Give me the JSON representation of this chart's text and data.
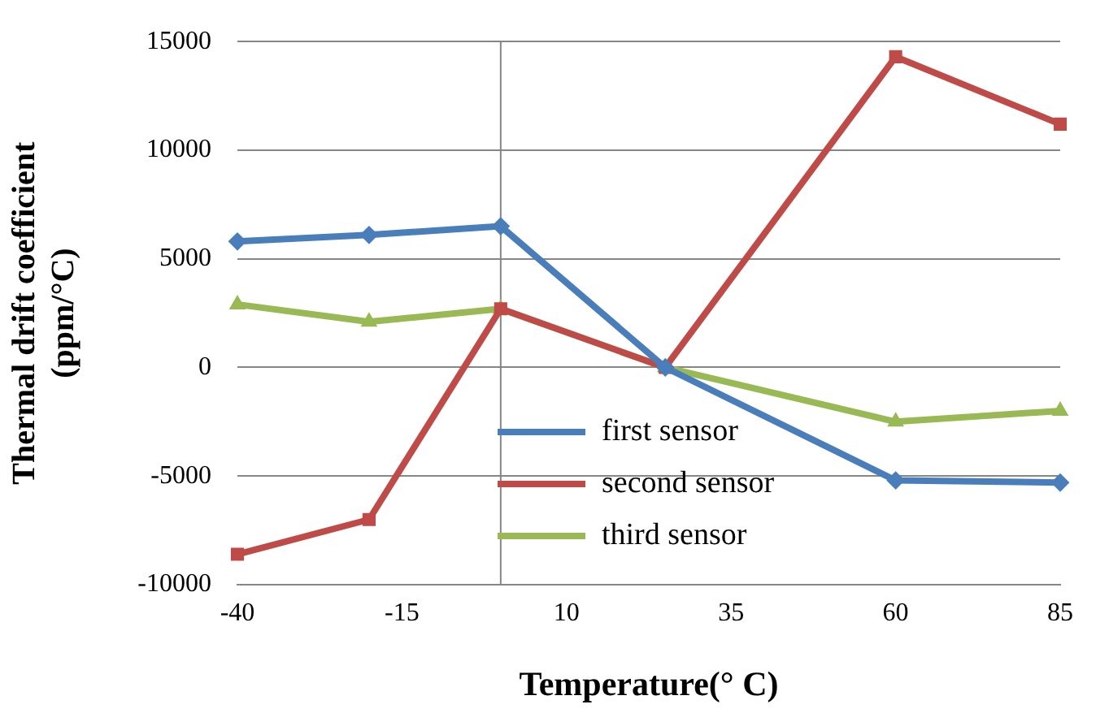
{
  "chart_data": {
    "type": "line",
    "xlabel": "Temperature(° C)",
    "ylabel": "Thermal drift coefficient\n(ppm/°C)",
    "x": [
      -40,
      -20,
      0,
      25,
      60,
      85
    ],
    "xlim": [
      -40,
      85
    ],
    "xticks": [
      -40,
      -15,
      10,
      35,
      60,
      85
    ],
    "ylim": [
      -10000,
      15000
    ],
    "yticks": [
      -10000,
      -5000,
      0,
      5000,
      10000,
      15000
    ],
    "grid": "y",
    "legend": "bottom",
    "line_style": "solid",
    "ref_lines": [
      {
        "axis": "x",
        "value": 0,
        "color": "#868686"
      }
    ],
    "series": [
      {
        "name": "first sensor",
        "color": "#4a7ebb",
        "marker": "diamond",
        "values": [
          5800,
          6100,
          6500,
          0,
          -5200,
          -5300
        ]
      },
      {
        "name": "second sensor",
        "color": "#be4b48",
        "marker": "square",
        "values": [
          -8600,
          -7000,
          2700,
          0,
          14300,
          11200
        ]
      },
      {
        "name": "third sensor",
        "color": "#98b954",
        "marker": "triangle",
        "values": [
          2900,
          2100,
          2700,
          0,
          -2500,
          -2000
        ]
      }
    ]
  }
}
